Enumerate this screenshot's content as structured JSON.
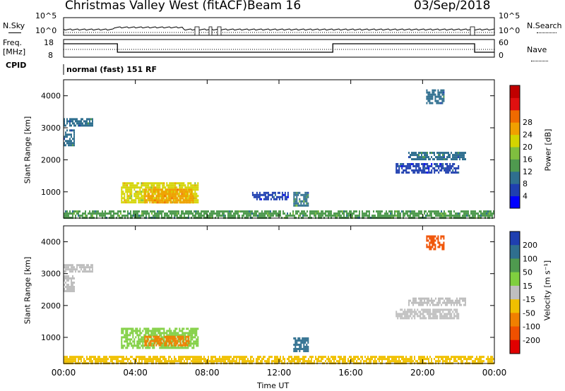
{
  "header": {
    "station": "Christmas Valley West (fitACF)",
    "beam": "Beam 16",
    "date": "03/Sep/2018"
  },
  "panels": {
    "nsky_label": "N.Sky",
    "nsky_ticks": [
      "10^5",
      "10^0"
    ],
    "nsearch_label": "N.Search",
    "nsearch_ticks": [
      "10^5",
      "10^0"
    ],
    "freq_label": "Freq.",
    "freq_unit": "[MHz]",
    "freq_ticks": [
      "18",
      "8"
    ],
    "nave_label": "Nave",
    "nave_ticks": [
      "60",
      "0"
    ],
    "cpid_label": "CPID",
    "cpid_mode": "normal (fast) 151 RF"
  },
  "chart_data": [
    {
      "type": "heatmap",
      "title": "",
      "ylabel": "Slant Range [km]",
      "xlabel": "",
      "ylim": [
        180,
        4500
      ],
      "y_ticks": [
        1000,
        2000,
        3000,
        4000
      ],
      "colorbar": {
        "label": "Power [dB]",
        "ticks": [
          4,
          8,
          12,
          16,
          20,
          24,
          28
        ],
        "colors": [
          "#0000ff",
          "#1f3fb0",
          "#2f6f8f",
          "#4f9a4f",
          "#7fbf3f",
          "#d4d400",
          "#f0a000",
          "#f06a00",
          "#e01010",
          "#c00000"
        ]
      },
      "regions": [
        {
          "t_start": 0.0,
          "t_end": 1.6,
          "r_start": 3050,
          "r_end": 3300,
          "value": 10
        },
        {
          "t_start": 0.0,
          "t_end": 0.6,
          "r_start": 2450,
          "r_end": 2950,
          "value": 9
        },
        {
          "t_start": 3.2,
          "t_end": 7.5,
          "r_start": 650,
          "r_end": 1300,
          "value": 22
        },
        {
          "t_start": 4.5,
          "t_end": 7.2,
          "r_start": 700,
          "r_end": 1100,
          "value": 27
        },
        {
          "t_start": 10.5,
          "t_end": 12.5,
          "r_start": 800,
          "r_end": 1000,
          "value": 6
        },
        {
          "t_start": 12.8,
          "t_end": 13.6,
          "r_start": 600,
          "r_end": 1000,
          "value": 12
        },
        {
          "t_start": 18.5,
          "t_end": 22.0,
          "r_start": 1600,
          "r_end": 1900,
          "value": 6
        },
        {
          "t_start": 19.2,
          "t_end": 22.4,
          "r_start": 2050,
          "r_end": 2250,
          "value": 10
        },
        {
          "t_start": 20.2,
          "t_end": 21.2,
          "r_start": 3800,
          "r_end": 4200,
          "value": 9
        },
        {
          "t_start": 0.0,
          "t_end": 24.0,
          "r_start": 180,
          "r_end": 420,
          "value": 14
        }
      ]
    },
    {
      "type": "heatmap",
      "title": "",
      "ylabel": "Slant Range [km]",
      "xlabel": "Time UT",
      "ylim": [
        180,
        4500
      ],
      "y_ticks": [
        1000,
        2000,
        3000,
        4000
      ],
      "x_ticks": [
        "00:00",
        "04:00",
        "08:00",
        "12:00",
        "16:00",
        "20:00",
        "00:00"
      ],
      "colorbar": {
        "label": "Velocity [m s⁻¹]",
        "ticks": [
          200,
          100,
          50,
          15,
          -15,
          -50,
          -100,
          -200
        ],
        "colors": [
          "#1f3fb0",
          "#2f6f8f",
          "#4f9a4f",
          "#7fcf3f",
          "#bfbfbf",
          "#f0c000",
          "#f08000",
          "#f05000",
          "#e00000"
        ]
      },
      "regions": [
        {
          "t_start": 0.0,
          "t_end": 1.6,
          "r_start": 3050,
          "r_end": 3300,
          "value": 0
        },
        {
          "t_start": 0.0,
          "t_end": 0.6,
          "r_start": 2450,
          "r_end": 2950,
          "value": 0
        },
        {
          "t_start": 3.2,
          "t_end": 7.5,
          "r_start": 650,
          "r_end": 1300,
          "value": 40
        },
        {
          "t_start": 4.5,
          "t_end": 7.0,
          "r_start": 750,
          "r_end": 1050,
          "value": -60
        },
        {
          "t_start": 12.8,
          "t_end": 13.6,
          "r_start": 600,
          "r_end": 1000,
          "value": 150
        },
        {
          "t_start": 18.5,
          "t_end": 22.0,
          "r_start": 1600,
          "r_end": 1900,
          "value": 0
        },
        {
          "t_start": 19.2,
          "t_end": 22.4,
          "r_start": 2050,
          "r_end": 2250,
          "value": 0
        },
        {
          "t_start": 20.2,
          "t_end": 21.2,
          "r_start": 3800,
          "r_end": 4200,
          "value": -180
        },
        {
          "t_start": 0.0,
          "t_end": 24.0,
          "r_start": 180,
          "r_end": 420,
          "value": -30
        }
      ]
    }
  ]
}
